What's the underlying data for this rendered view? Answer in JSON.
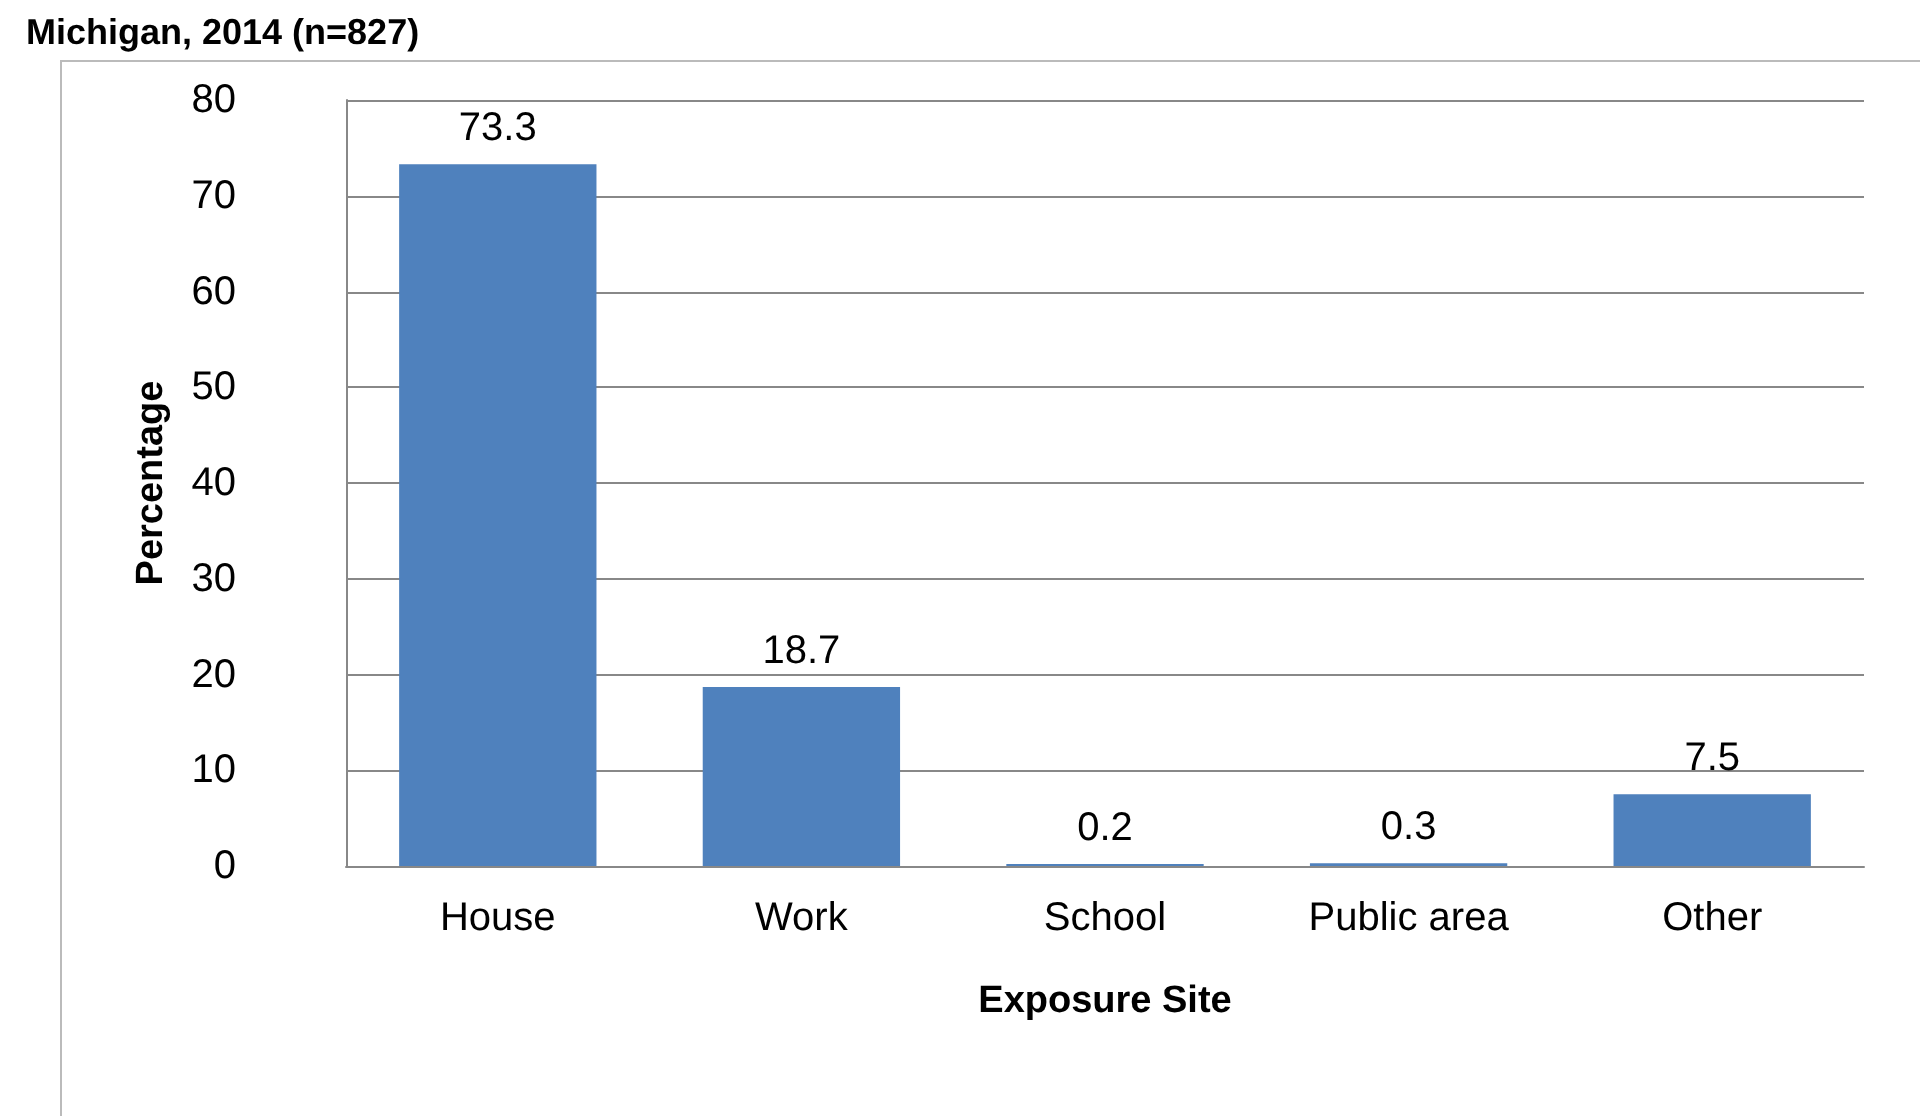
{
  "chart_data": {
    "type": "bar",
    "title": "Michigan, 2014 (n=827)",
    "xlabel": "Exposure Site",
    "ylabel": "Percentage",
    "categories": [
      "House",
      "Work",
      "School",
      "Public area",
      "Other"
    ],
    "values": [
      73.3,
      18.7,
      0.2,
      0.3,
      7.5
    ],
    "color": "#4f81bd",
    "ylim": [
      0,
      80
    ],
    "yticks": [
      0,
      10,
      20,
      30,
      40,
      50,
      60,
      70,
      80
    ],
    "grid": "y",
    "data_labels": true
  }
}
